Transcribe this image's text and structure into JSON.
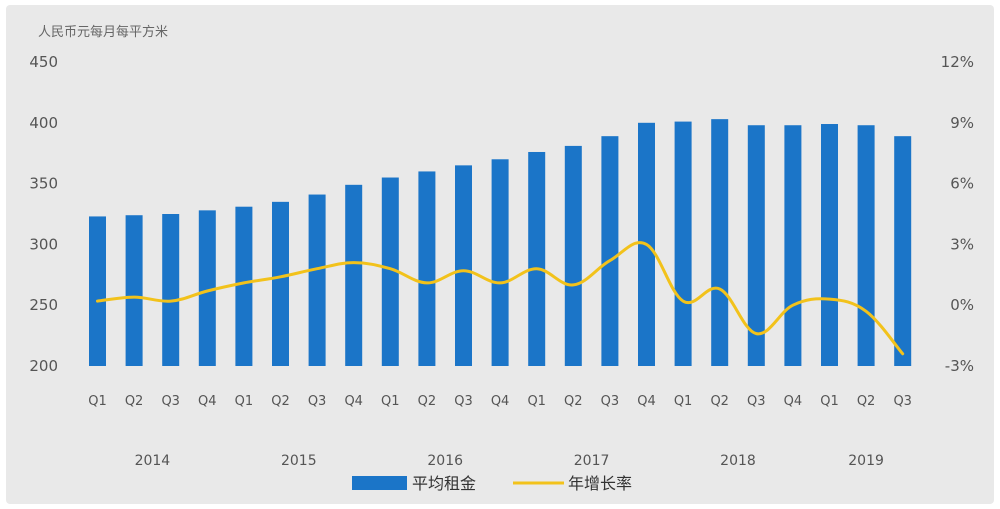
{
  "chart_data": {
    "type": "bar",
    "unit_label": "人民币元每月每平方米",
    "quarters": [
      "Q1",
      "Q2",
      "Q3",
      "Q4",
      "Q1",
      "Q2",
      "Q3",
      "Q4",
      "Q1",
      "Q2",
      "Q3",
      "Q4",
      "Q1",
      "Q2",
      "Q3",
      "Q4",
      "Q1",
      "Q2",
      "Q3",
      "Q4",
      "Q1",
      "Q2",
      "Q3"
    ],
    "years": [
      {
        "label": "2014",
        "start": 0,
        "end": 3
      },
      {
        "label": "2015",
        "start": 4,
        "end": 7
      },
      {
        "label": "2016",
        "start": 8,
        "end": 11
      },
      {
        "label": "2017",
        "start": 12,
        "end": 15
      },
      {
        "label": "2018",
        "start": 16,
        "end": 19
      },
      {
        "label": "2019",
        "start": 20,
        "end": 22
      }
    ],
    "left_axis": {
      "min": 200,
      "max": 450,
      "ticks": [
        "450",
        "400",
        "350",
        "300",
        "250",
        "200"
      ]
    },
    "right_axis": {
      "min": -3,
      "max": 12,
      "ticks": [
        "12%",
        "9%",
        "6%",
        "3%",
        "0%",
        "-3%"
      ]
    },
    "series": [
      {
        "name": "平均租金",
        "type": "bar",
        "axis": "left",
        "color": "#1b75c8",
        "values": [
          323,
          324,
          325,
          328,
          331,
          335,
          341,
          349,
          355,
          360,
          365,
          370,
          376,
          381,
          389,
          400,
          401,
          403,
          398,
          398,
          399,
          398,
          389
        ]
      },
      {
        "name": "年增长率",
        "type": "line",
        "axis": "right",
        "color": "#f2c21b",
        "values": [
          0.2,
          0.4,
          0.2,
          0.7,
          1.1,
          1.4,
          1.8,
          2.1,
          1.8,
          1.1,
          1.7,
          1.1,
          1.8,
          1.0,
          2.2,
          3.0,
          0.2,
          0.8,
          -1.4,
          0.0,
          0.3,
          -0.3,
          -2.4
        ]
      }
    ]
  }
}
